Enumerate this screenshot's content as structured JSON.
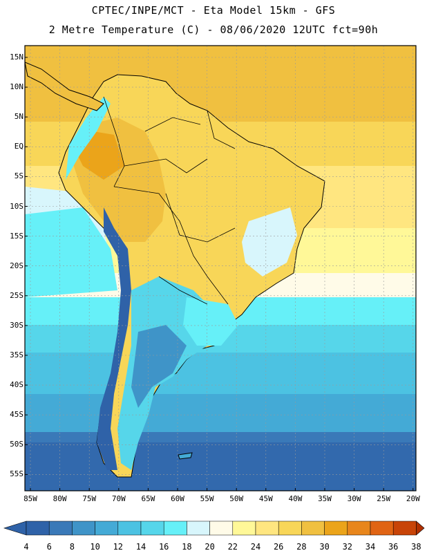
{
  "header": {
    "line1": "CPTEC/INPE/MCT -  Eta Model 15km - GFS",
    "line2": "2 Metre Temperature (C) - 08/06/2020 12UTC fct=90h"
  },
  "axes": {
    "lat_labels": [
      "15N",
      "10N",
      "5N",
      "EQ",
      "5S",
      "10S",
      "15S",
      "20S",
      "25S",
      "30S",
      "35S",
      "40S",
      "45S",
      "50S",
      "55S"
    ],
    "lon_labels": [
      "85W",
      "80W",
      "75W",
      "70W",
      "65W",
      "60W",
      "55W",
      "50W",
      "45W",
      "40W",
      "35W",
      "30W",
      "25W",
      "20W"
    ]
  },
  "colorbar": {
    "labels": [
      "4",
      "6",
      "8",
      "10",
      "12",
      "14",
      "16",
      "18",
      "20",
      "22",
      "24",
      "26",
      "28",
      "30",
      "32",
      "34",
      "36",
      "38"
    ],
    "colors": [
      "#2f62a8",
      "#3a79b8",
      "#3f94c8",
      "#44aad6",
      "#4cc2e2",
      "#56d6ea",
      "#66f0f8",
      "#d8f6fc",
      "#fffbe8",
      "#fff898",
      "#ffe680",
      "#f8d658",
      "#f0c040",
      "#eba41a",
      "#e8861c",
      "#e06414",
      "#c84408",
      "#b03000"
    ]
  },
  "map_data": {
    "region": "South America",
    "lat_range": [
      -58,
      17
    ],
    "lon_range": [
      -86,
      -19
    ],
    "variable": "2 Metre Temperature",
    "units": "C"
  }
}
